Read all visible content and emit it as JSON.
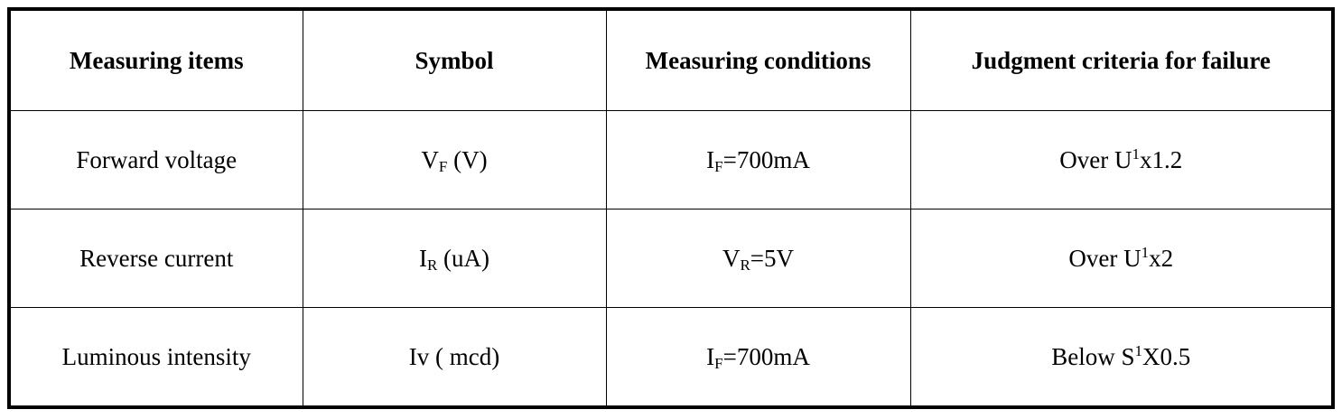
{
  "table": {
    "header": [
      "Measuring items",
      "Symbol",
      "Measuring conditions",
      "Judgment criteria for failure"
    ],
    "rows": [
      [
        [
          "Forward voltage"
        ],
        [
          "V",
          {
            "sub": "F"
          },
          " (V)"
        ],
        [
          "I",
          {
            "sub": "F"
          },
          "=700mA"
        ],
        [
          "Over U",
          {
            "sup": "1"
          },
          "x1.2"
        ]
      ],
      [
        [
          "Reverse current"
        ],
        [
          "I",
          {
            "sub": "R"
          },
          " (uA)"
        ],
        [
          "V",
          {
            "sub": "R"
          },
          "=5V"
        ],
        [
          "Over U",
          {
            "sup": "1"
          },
          "x2"
        ]
      ],
      [
        [
          "Luminous intensity"
        ],
        [
          "Iv ( mcd)"
        ],
        [
          "I",
          {
            "sub": "F"
          },
          "=700mA"
        ],
        [
          "Below S",
          {
            "sup": "1"
          },
          "X0.5"
        ]
      ]
    ]
  }
}
